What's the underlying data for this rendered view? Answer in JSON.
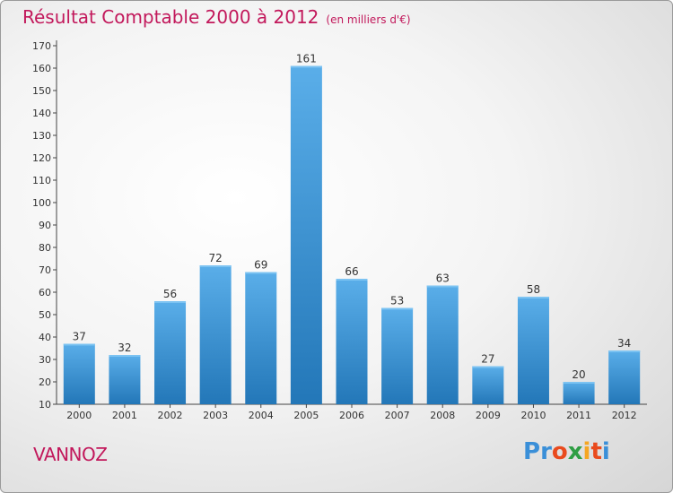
{
  "title": {
    "main": "Résultat Comptable 2000 à 2012",
    "sub": "(en milliers d'€)"
  },
  "commune": "VANNOZ",
  "logo": {
    "text": "Proxiti",
    "letters": [
      "P",
      "r",
      "o",
      "x",
      "i",
      "t",
      "i"
    ],
    "colors": [
      "#3a8fd8",
      "#3a8fd8",
      "#e94a1d",
      "#2f9e44",
      "#f5a623",
      "#e94a1d",
      "#3a8fd8"
    ]
  },
  "colors": {
    "title": "#c2185b",
    "bar_light": "#5aaee9",
    "bar_dark": "#2377b8"
  },
  "chart_data": {
    "type": "bar",
    "title": "Résultat Comptable 2000 à 2012 (en milliers d'€)",
    "xlabel": "",
    "ylabel": "",
    "categories": [
      "2000",
      "2001",
      "2002",
      "2003",
      "2004",
      "2005",
      "2006",
      "2007",
      "2008",
      "2009",
      "2010",
      "2011",
      "2012"
    ],
    "values": [
      37,
      32,
      56,
      72,
      69,
      161,
      66,
      53,
      63,
      27,
      58,
      20,
      34
    ],
    "ylim": [
      10,
      170
    ],
    "yticks": [
      "10",
      "20",
      "30",
      "40",
      "50",
      "60",
      "70",
      "80",
      "90",
      "100",
      "110",
      "120",
      "130",
      "140",
      "150",
      "160",
      "170"
    ],
    "grid": false
  }
}
